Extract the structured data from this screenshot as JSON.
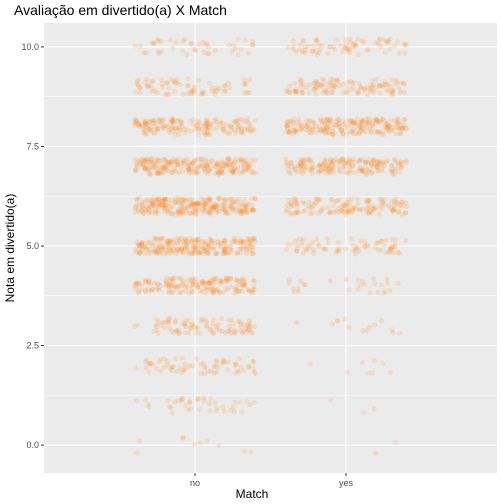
{
  "chart_data": {
    "type": "scatter",
    "title": "Avaliação em divertido(a) X Match",
    "xlabel": "Match",
    "ylabel": "Nota em divertido(a)",
    "categories": [
      "no",
      "yes"
    ],
    "y_ticks": [
      "0.0",
      "2.5",
      "5.0",
      "7.5",
      "10.0"
    ],
    "ylim": [
      -0.7,
      10.6
    ],
    "grid": true,
    "jitter": true,
    "point_color": "#FF7F0E",
    "panel_background": "#EBEBEB",
    "groups": [
      {
        "category": "no",
        "counts": {
          "0": 10,
          "1": 40,
          "2": 70,
          "3": 95,
          "4": 170,
          "5": 240,
          "6": 260,
          "7": 230,
          "8": 170,
          "9": 75,
          "10": 45
        }
      },
      {
        "category": "yes",
        "counts": {
          "0": 2,
          "1": 3,
          "2": 8,
          "3": 14,
          "4": 28,
          "5": 75,
          "6": 140,
          "7": 185,
          "8": 210,
          "9": 120,
          "10": 75
        }
      }
    ]
  }
}
